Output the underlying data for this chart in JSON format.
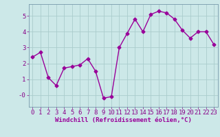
{
  "x": [
    0,
    1,
    2,
    3,
    4,
    5,
    6,
    7,
    8,
    9,
    10,
    11,
    12,
    13,
    14,
    15,
    16,
    17,
    18,
    19,
    20,
    21,
    22,
    23
  ],
  "y": [
    2.4,
    2.7,
    1.1,
    0.6,
    1.7,
    1.8,
    1.9,
    2.3,
    1.5,
    -0.2,
    -0.1,
    3.0,
    3.9,
    4.8,
    4.0,
    5.1,
    5.3,
    5.2,
    4.8,
    4.1,
    3.6,
    4.0,
    4.0,
    3.2
  ],
  "line_color": "#990099",
  "marker": "D",
  "markersize": 2.5,
  "linewidth": 1.0,
  "bg_color": "#cce8e8",
  "grid_color": "#aacccc",
  "xlabel": "Windchill (Refroidissement éolien,°C)",
  "xlabel_color": "#990099",
  "ytick_vals": [
    0,
    1,
    2,
    3,
    4,
    5
  ],
  "ytick_labels": [
    "-0",
    "1",
    "2",
    "3",
    "4",
    "5"
  ],
  "xlim": [
    -0.5,
    23.5
  ],
  "ylim": [
    -0.75,
    5.75
  ],
  "xtick_labels": [
    "0",
    "1",
    "2",
    "3",
    "4",
    "5",
    "6",
    "7",
    "8",
    "9",
    "10",
    "11",
    "12",
    "13",
    "14",
    "15",
    "16",
    "17",
    "18",
    "19",
    "20",
    "21",
    "22",
    "23"
  ],
  "spine_color": "#7799aa",
  "tick_color": "#880088",
  "font_size": 6.5,
  "xlabel_fontsize": 6.5
}
